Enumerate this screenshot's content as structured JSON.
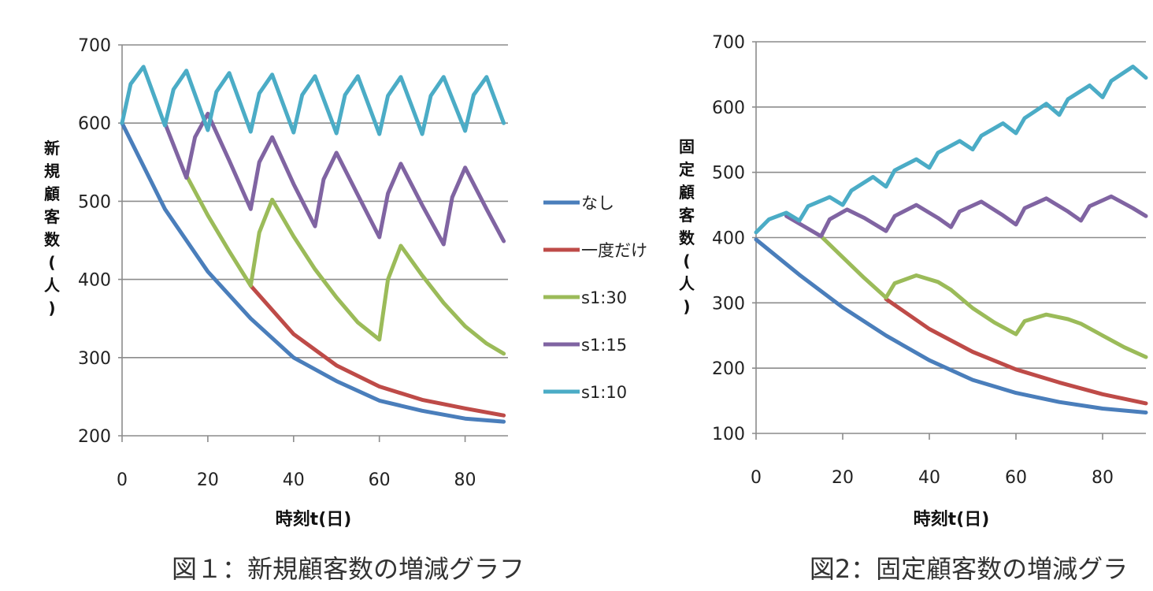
{
  "chart_data": [
    {
      "type": "line",
      "title": "図１：新規顧客数の増減グラフ",
      "xlabel": "時刻t(日)",
      "ylabel": "新規顧客数(人)",
      "xlim": [
        0,
        90
      ],
      "ylim": [
        200,
        700
      ],
      "xticks": [
        0,
        20,
        40,
        60,
        80
      ],
      "yticks": [
        200,
        300,
        400,
        500,
        600,
        700
      ],
      "grid": "horizontal",
      "legend": "right",
      "series": [
        {
          "name": "なし",
          "color": "#4a7ebb",
          "x": [
            0,
            10,
            20,
            30,
            40,
            50,
            60,
            70,
            80,
            89
          ],
          "y": [
            600,
            490,
            410,
            350,
            300,
            270,
            245,
            232,
            222,
            218
          ]
        },
        {
          "name": "一度だけ",
          "color": "#be4b48",
          "x": [
            30,
            40,
            50,
            60,
            70,
            80,
            89
          ],
          "y": [
            392,
            330,
            290,
            263,
            246,
            235,
            226
          ]
        },
        {
          "name": "s1:30",
          "color": "#9bbb59",
          "x": [
            15,
            20,
            25,
            30,
            32,
            35,
            40,
            45,
            50,
            55,
            60,
            62,
            65,
            70,
            75,
            80,
            85,
            89
          ],
          "y": [
            533,
            482,
            436,
            392,
            460,
            502,
            455,
            413,
            377,
            345,
            323,
            400,
            443,
            405,
            370,
            340,
            318,
            305
          ]
        },
        {
          "name": "s1:15",
          "color": "#8064a2",
          "x": [
            10,
            15,
            17,
            20,
            25,
            30,
            32,
            35,
            40,
            45,
            47,
            50,
            55,
            60,
            62,
            65,
            70,
            75,
            77,
            80,
            85,
            89
          ],
          "y": [
            600,
            530,
            582,
            612,
            552,
            490,
            550,
            582,
            522,
            468,
            528,
            562,
            508,
            454,
            510,
            548,
            495,
            445,
            505,
            543,
            490,
            449
          ]
        },
        {
          "name": "s1:10",
          "color": "#4bacc6",
          "x": [
            0,
            2,
            5,
            10,
            12,
            15,
            20,
            22,
            25,
            30,
            32,
            35,
            40,
            42,
            45,
            50,
            52,
            55,
            60,
            62,
            65,
            70,
            72,
            75,
            80,
            82,
            85,
            89
          ],
          "y": [
            600,
            650,
            672,
            597,
            643,
            667,
            591,
            640,
            664,
            589,
            638,
            662,
            588,
            636,
            660,
            587,
            636,
            660,
            586,
            635,
            659,
            586,
            635,
            659,
            590,
            636,
            659,
            600
          ]
        }
      ]
    },
    {
      "type": "line",
      "title": "図2：固定顧客数の増減グラ",
      "xlabel": "時刻t(日)",
      "ylabel": "固定顧客数(人)",
      "xlim": [
        0,
        90
      ],
      "ylim": [
        100,
        700
      ],
      "xticks": [
        0,
        20,
        40,
        60,
        80
      ],
      "yticks": [
        100,
        200,
        300,
        400,
        500,
        600,
        700
      ],
      "grid": "horizontal",
      "legend": "none",
      "series": [
        {
          "name": "なし",
          "color": "#4a7ebb",
          "x": [
            0,
            10,
            20,
            30,
            40,
            50,
            60,
            70,
            80,
            90
          ],
          "y": [
            397,
            343,
            293,
            250,
            212,
            182,
            162,
            148,
            138,
            132
          ]
        },
        {
          "name": "一度だけ",
          "color": "#be4b48",
          "x": [
            30,
            40,
            50,
            60,
            70,
            80,
            90
          ],
          "y": [
            306,
            260,
            225,
            198,
            178,
            160,
            146
          ]
        },
        {
          "name": "s1:30",
          "color": "#9bbb59",
          "x": [
            15,
            20,
            25,
            30,
            32,
            37,
            42,
            45,
            50,
            55,
            60,
            62,
            67,
            72,
            75,
            80,
            85,
            90
          ],
          "y": [
            402,
            370,
            338,
            308,
            330,
            342,
            332,
            320,
            292,
            270,
            252,
            272,
            282,
            275,
            268,
            250,
            232,
            217
          ]
        },
        {
          "name": "s1:15",
          "color": "#8064a2",
          "x": [
            7,
            15,
            17,
            21,
            25,
            30,
            32,
            37,
            42,
            45,
            47,
            52,
            57,
            60,
            62,
            67,
            72,
            75,
            77,
            82,
            87,
            90
          ],
          "y": [
            433,
            402,
            428,
            443,
            430,
            410,
            433,
            450,
            430,
            416,
            440,
            455,
            434,
            420,
            445,
            460,
            440,
            426,
            448,
            463,
            445,
            433
          ]
        },
        {
          "name": "s1:10",
          "color": "#4bacc6",
          "x": [
            0,
            3,
            7,
            10,
            12,
            17,
            20,
            22,
            27,
            30,
            32,
            37,
            40,
            42,
            47,
            50,
            52,
            57,
            60,
            62,
            67,
            70,
            72,
            77,
            80,
            82,
            87,
            90
          ],
          "y": [
            408,
            428,
            438,
            426,
            448,
            462,
            450,
            472,
            493,
            478,
            503,
            520,
            507,
            530,
            548,
            535,
            556,
            575,
            560,
            583,
            605,
            588,
            612,
            633,
            615,
            640,
            662,
            645
          ]
        }
      ]
    }
  ]
}
